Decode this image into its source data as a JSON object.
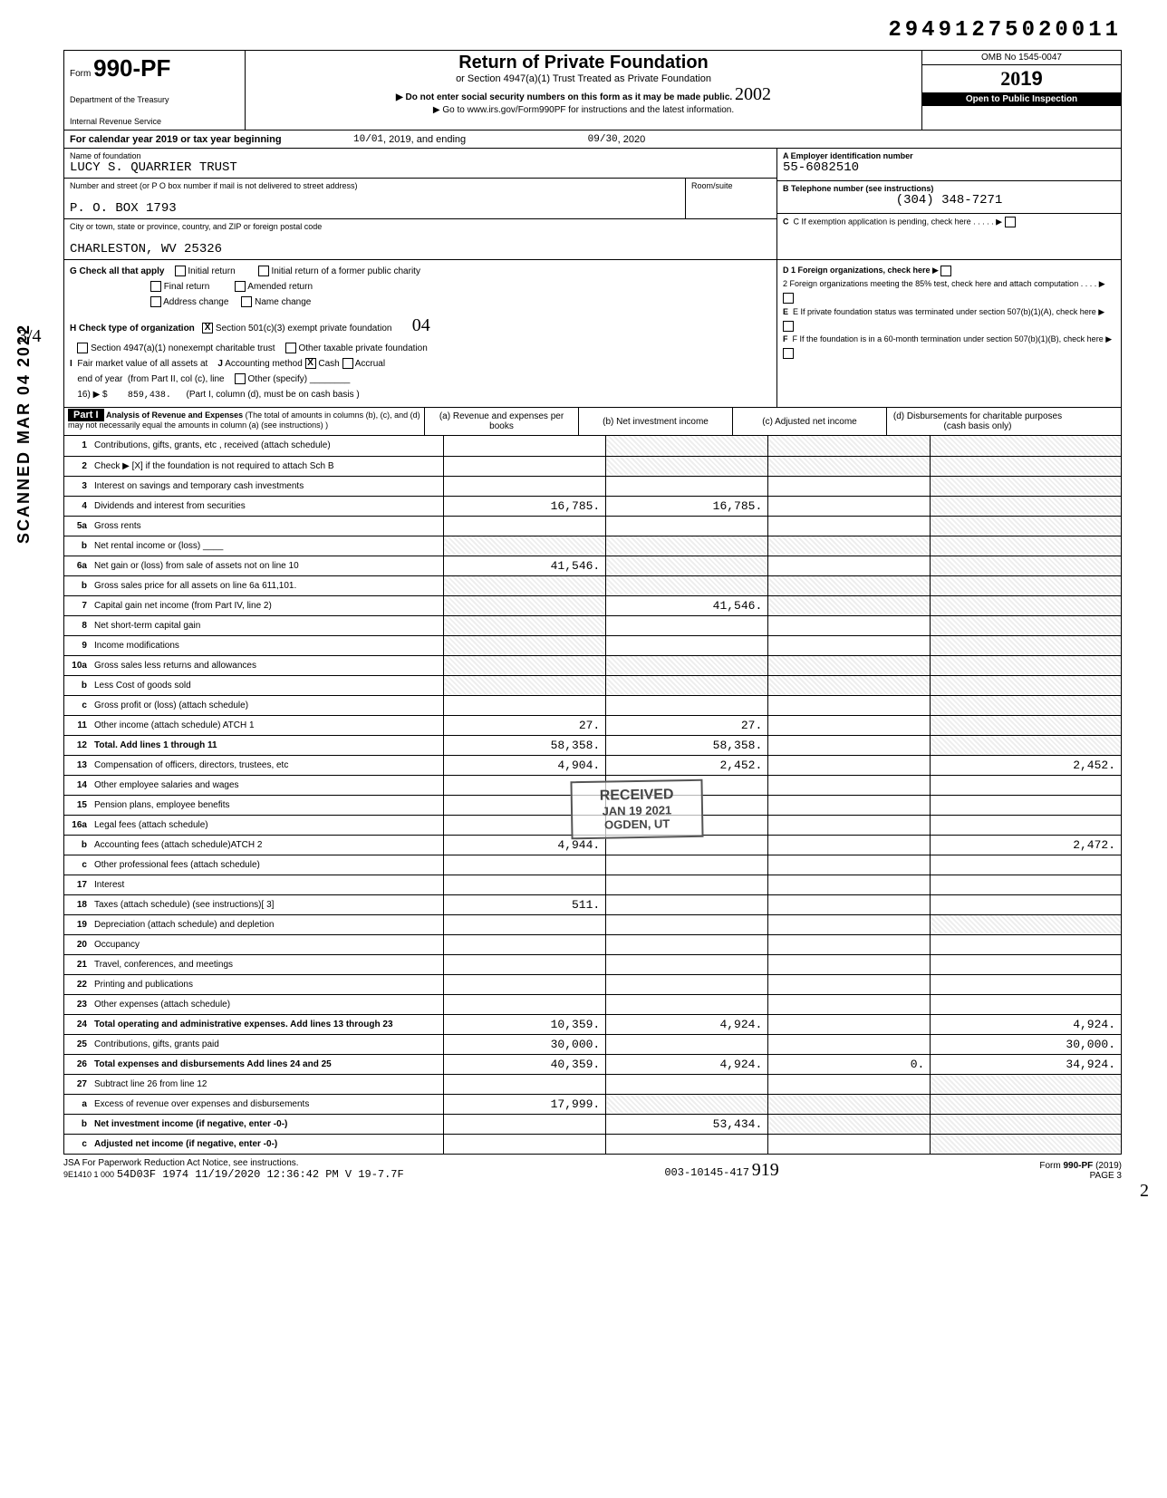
{
  "dln": "29491275020011",
  "form_number": "990-PF",
  "form_prefix": "Form",
  "dept1": "Department of the Treasury",
  "dept2": "Internal Revenue Service",
  "title": "Return of Private Foundation",
  "subtitle1": "or Section 4947(a)(1) Trust Treated as Private Foundation",
  "subtitle2": "▶ Do not enter social security numbers on this form as it may be made public.",
  "subtitle3": "▶ Go to www.irs.gov/Form990PF for instructions and the latest information.",
  "omb": "OMB No 1545-0047",
  "year": "2019",
  "open_inspection": "Open to Public Inspection",
  "calendar_line": "For calendar year 2019 or tax year beginning",
  "begin_date": "10/01",
  "begin_year": ", 2019, and ending",
  "end_date": "09/30",
  "end_year": ", 2020",
  "name_lbl": "Name of foundation",
  "foundation_name": "LUCY S. QUARRIER TRUST",
  "addr_lbl": "Number and street (or P O  box number if mail is not delivered to street address)",
  "room_lbl": "Room/suite",
  "street": "P. O. BOX 1793",
  "city_lbl": "City or town, state or province, country, and ZIP or foreign postal code",
  "city": "CHARLESTON, WV 25326",
  "ein_lbl": "A  Employer identification number",
  "ein": "55-6082510",
  "phone_lbl": "B  Telephone number (see instructions)",
  "phone": "(304) 348-7271",
  "c_lbl": "C  If exemption application is pending, check here",
  "g_lbl": "G  Check all that apply",
  "g_initial": "Initial return",
  "g_initial_former": "Initial return of a former public charity",
  "g_final": "Final return",
  "g_amended": "Amended return",
  "g_addr": "Address change",
  "g_name": "Name change",
  "d1": "D 1  Foreign organizations, check here",
  "d2": "2  Foreign organizations meeting the 85% test, check here and attach computation",
  "h_lbl": "H  Check type of organization",
  "h_501": "Section 501(c)(3) exempt private foundation",
  "h_4947": "Section 4947(a)(1) nonexempt charitable trust",
  "h_other": "Other taxable private foundation",
  "e_lbl": "E  If private foundation status was terminated under section 507(b)(1)(A), check here",
  "i_lbl": "I  Fair market value of all assets at end of year  (from Part II, col (c), line 16) ▶ $",
  "fmv": "859,438.",
  "j_lbl": "J Accounting method",
  "j_cash": "Cash",
  "j_accrual": "Accrual",
  "j_other": "Other (specify)",
  "j_note": "(Part I, column (d), must be on cash basis )",
  "f_lbl": "F  If the foundation is in a 60-month termination under section 507(b)(1)(B), check here",
  "part1_title": "Analysis of Revenue and Expenses",
  "part1_note": "(The total of amounts in columns (b), (c), and (d) may not necessarily equal the amounts in column (a) (see instructions) )",
  "col_a": "(a) Revenue and expenses per books",
  "col_b": "(b) Net investment income",
  "col_c": "(c) Adjusted net income",
  "col_d": "(d) Disbursements for charitable purposes (cash basis only)",
  "rows": {
    "r1": {
      "n": "1",
      "d": "Contributions, gifts, grants, etc , received (attach schedule)"
    },
    "r2": {
      "n": "2",
      "d": "Check ▶ [X] if the foundation is not required to attach Sch B"
    },
    "r3": {
      "n": "3",
      "d": "Interest on savings and temporary cash investments"
    },
    "r4": {
      "n": "4",
      "d": "Dividends and interest from securities",
      "a": "16,785.",
      "b": "16,785."
    },
    "r5a": {
      "n": "5a",
      "d": "Gross rents"
    },
    "r5b": {
      "n": "b",
      "d": "Net rental income or (loss) ____"
    },
    "r6a": {
      "n": "6a",
      "d": "Net gain or (loss) from sale of assets not on line 10",
      "a": "41,546."
    },
    "r6b": {
      "n": "b",
      "d": "Gross sales price for all assets on line 6a          611,101."
    },
    "r7": {
      "n": "7",
      "d": "Capital gain net income (from Part IV, line 2)",
      "b": "41,546."
    },
    "r8": {
      "n": "8",
      "d": "Net short-term capital gain"
    },
    "r9": {
      "n": "9",
      "d": "Income modifications"
    },
    "r10a": {
      "n": "10a",
      "d": "Gross sales less returns and allowances"
    },
    "r10b": {
      "n": "b",
      "d": "Less Cost of goods sold"
    },
    "r10c": {
      "n": "c",
      "d": "Gross profit or (loss) (attach schedule)"
    },
    "r11": {
      "n": "11",
      "d": "Other income (attach schedule) ATCH 1",
      "a": "27.",
      "b": "27."
    },
    "r12": {
      "n": "12",
      "d": "Total. Add lines 1 through 11",
      "a": "58,358.",
      "b": "58,358."
    },
    "r13": {
      "n": "13",
      "d": "Compensation of officers, directors, trustees, etc",
      "a": "4,904.",
      "b": "2,452.",
      "dd": "2,452."
    },
    "r14": {
      "n": "14",
      "d": "Other employee salaries and wages"
    },
    "r15": {
      "n": "15",
      "d": "Pension plans, employee benefits"
    },
    "r16a": {
      "n": "16a",
      "d": "Legal fees (attach schedule)"
    },
    "r16b": {
      "n": "b",
      "d": "Accounting fees (attach schedule)ATCH 2",
      "a": "4,944.",
      "dd": "2,472."
    },
    "r16c": {
      "n": "c",
      "d": "Other professional fees (attach schedule)"
    },
    "r17": {
      "n": "17",
      "d": "Interest"
    },
    "r18": {
      "n": "18",
      "d": "Taxes (attach schedule) (see instructions)[ 3]",
      "a": "511."
    },
    "r19": {
      "n": "19",
      "d": "Depreciation (attach schedule) and depletion"
    },
    "r20": {
      "n": "20",
      "d": "Occupancy"
    },
    "r21": {
      "n": "21",
      "d": "Travel, conferences, and meetings"
    },
    "r22": {
      "n": "22",
      "d": "Printing and publications"
    },
    "r23": {
      "n": "23",
      "d": "Other expenses (attach schedule)"
    },
    "r24": {
      "n": "24",
      "d": "Total operating and administrative expenses. Add lines 13 through 23",
      "a": "10,359.",
      "b": "4,924.",
      "dd": "4,924."
    },
    "r25": {
      "n": "25",
      "d": "Contributions, gifts, grants paid",
      "a": "30,000.",
      "dd": "30,000."
    },
    "r26": {
      "n": "26",
      "d": "Total expenses and disbursements Add lines 24 and 25",
      "a": "40,359.",
      "b": "4,924.",
      "c": "0.",
      "dd": "34,924."
    },
    "r27": {
      "n": "27",
      "d": "Subtract line 26 from line 12"
    },
    "r27a": {
      "n": "a",
      "d": "Excess of revenue over expenses and disbursements",
      "a": "17,999."
    },
    "r27b": {
      "n": "b",
      "d": "Net investment income (if negative, enter -0-)",
      "b": "53,434."
    },
    "r27c": {
      "n": "c",
      "d": "Adjusted net income (if negative, enter -0-)"
    }
  },
  "stamp_received": "RECEIVED",
  "stamp_date": "JAN 19 2021",
  "stamp_loc": "OGDEN, UT",
  "scanned": "SCANNED MAR 04 2022",
  "paperwork": "JSA For Paperwork Reduction Act Notice, see instructions.",
  "jsa_code": "9E1410 1 000",
  "footer_line": "54D03F 1974  11/19/2020  12:36:42 PM  V 19-7.7F",
  "footer_id": "003-10145-417",
  "form_foot": "Form 990-PF (2019)",
  "page": "PAGE 3",
  "hand_04": "04",
  "hand_2002": "2002",
  "hand_314": "3/4",
  "hand_919": "919",
  "hand_2": "2"
}
